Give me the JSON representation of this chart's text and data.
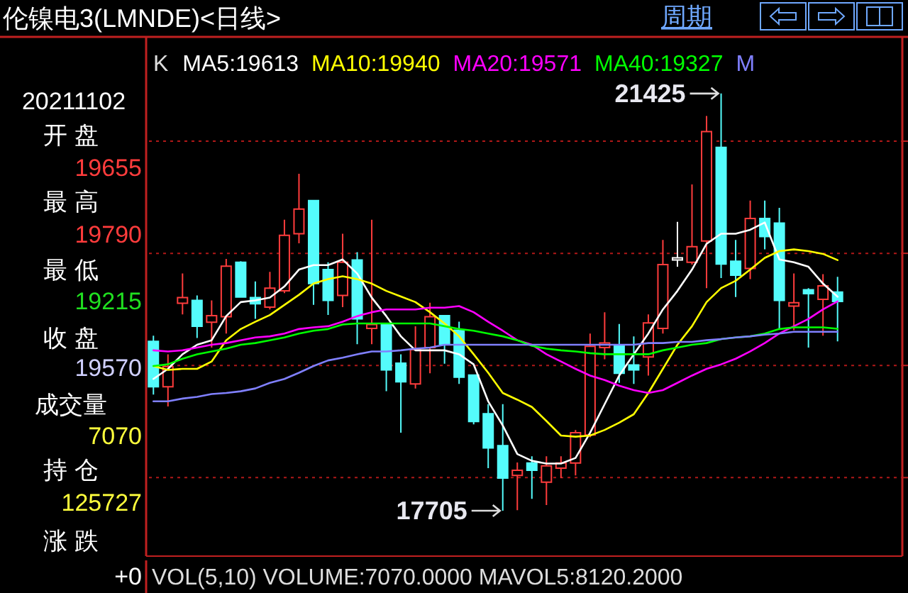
{
  "chart_data": {
    "type": "candlestick",
    "title": "伦镍电3(LMNDE)<日线>",
    "categories": [
      null,
      null,
      null,
      null,
      null,
      null,
      null,
      null,
      null,
      null,
      null,
      null,
      null,
      null,
      null,
      null,
      null,
      null,
      null,
      null,
      null,
      null,
      null,
      null,
      null,
      null,
      null,
      null,
      null,
      null,
      null,
      null,
      null,
      null,
      null,
      null,
      null,
      null,
      null,
      null,
      null,
      null,
      null,
      null,
      null,
      null,
      null,
      null
    ],
    "ohlc": [
      [
        19215,
        19265,
        18740,
        18810
      ],
      [
        18810,
        19100,
        18635,
        18990
      ],
      [
        19555,
        19820,
        19455,
        19605
      ],
      [
        19580,
        19625,
        19245,
        19350
      ],
      [
        19385,
        19580,
        19160,
        19445
      ],
      [
        19435,
        19950,
        19285,
        19885
      ],
      [
        19920,
        19930,
        19605,
        19610
      ],
      [
        19605,
        19750,
        19415,
        19550
      ],
      [
        19520,
        19835,
        19500,
        19690
      ],
      [
        19665,
        20300,
        19645,
        20160
      ],
      [
        20175,
        20710,
        20090,
        20395
      ],
      [
        20470,
        20470,
        19540,
        19730
      ],
      [
        19855,
        19920,
        19450,
        19580
      ],
      [
        19625,
        20175,
        19520,
        19920
      ],
      [
        19940,
        20010,
        19190,
        19415
      ],
      [
        19330,
        20300,
        19190,
        19365
      ],
      [
        19365,
        19365,
        18770,
        18960
      ],
      [
        19020,
        19100,
        18400,
        18855
      ],
      [
        18835,
        19350,
        18795,
        19140
      ],
      [
        19160,
        19560,
        18930,
        19435
      ],
      [
        19445,
        19445,
        19015,
        19190
      ],
      [
        19315,
        19390,
        18835,
        18895
      ],
      [
        18915,
        18915,
        18475,
        18500
      ],
      [
        18570,
        18655,
        18085,
        18265
      ],
      [
        18285,
        18655,
        17705,
        17995
      ],
      [
        18020,
        18135,
        17710,
        18065
      ],
      [
        18130,
        18190,
        17810,
        18065
      ],
      [
        17960,
        18190,
        17755,
        18105
      ],
      [
        18085,
        18190,
        17995,
        18130
      ],
      [
        18130,
        18425,
        18020,
        18400
      ],
      [
        18380,
        19285,
        18360,
        19170
      ],
      [
        19160,
        19475,
        19055,
        19200
      ],
      [
        19180,
        19370,
        18845,
        18930
      ],
      [
        19005,
        19260,
        18835,
        18960
      ],
      [
        19075,
        19455,
        18910,
        19380
      ],
      [
        19330,
        20120,
        19285,
        19900
      ],
      [
        19940,
        20280,
        19880,
        19960
      ],
      [
        19920,
        20615,
        19900,
        20060
      ],
      [
        20110,
        21225,
        19690,
        21085
      ],
      [
        20945,
        21425,
        19780,
        19905
      ],
      [
        19930,
        20120,
        19610,
        19805
      ],
      [
        19865,
        20470,
        19770,
        20310
      ],
      [
        20310,
        20470,
        20035,
        20150
      ],
      [
        20270,
        20405,
        19330,
        19580
      ],
      [
        19530,
        19820,
        19315,
        19560
      ],
      [
        19675,
        19690,
        19160,
        19640
      ],
      [
        19590,
        19815,
        19265,
        19710
      ],
      [
        19655,
        19790,
        19215,
        19570
      ]
    ],
    "colors": [
      "#54fcfc",
      "#ff3c3c",
      "#ff3c3c",
      "#54fcfc",
      "#ff3c3c",
      "#ff3c3c",
      "#54fcfc",
      "#54fcfc",
      "#ff3c3c",
      "#ff3c3c",
      "#ff3c3c",
      "#54fcfc",
      "#54fcfc",
      "#ff3c3c",
      "#54fcfc",
      "#ff3c3c",
      "#54fcfc",
      "#54fcfc",
      "#ff3c3c",
      "#ff3c3c",
      "#54fcfc",
      "#54fcfc",
      "#54fcfc",
      "#54fcfc",
      "#54fcfc",
      "#ff3c3c",
      "#54fcfc",
      "#ff3c3c",
      "#ff3c3c",
      "#ff3c3c",
      "#ff3c3c",
      "#ff3c3c",
      "#54fcfc",
      "#54fcfc",
      "#ff3c3c",
      "#ff3c3c",
      "#ffffff",
      "#ff3c3c",
      "#ff3c3c",
      "#54fcfc",
      "#54fcfc",
      "#ff3c3c",
      "#54fcfc",
      "#54fcfc",
      "#ff3c3c",
      "#54fcfc",
      "#ff3c3c",
      "#54fcfc"
    ],
    "series": [
      {
        "type": "line",
        "name": "MA5:19613",
        "color": "#ffffff",
        "values": [
          18880,
          18970,
          19100,
          19185,
          19225,
          19440,
          19565,
          19580,
          19605,
          19705,
          19855,
          19895,
          19895,
          19945,
          19820,
          19605,
          19440,
          19260,
          19135,
          19135,
          19135,
          19100,
          19010,
          18680,
          18465,
          18210,
          18150,
          18125,
          18125,
          18175,
          18400,
          18655,
          18910,
          19100,
          19285,
          19500,
          19665,
          19855,
          20085,
          20175,
          20175,
          20210,
          20275,
          19945,
          19920,
          19880,
          19730,
          19613
        ]
      },
      {
        "type": "line",
        "name": "MA10:19940",
        "color": "#ffff00",
        "values": [
          18995,
          18960,
          18970,
          18970,
          19035,
          19225,
          19325,
          19390,
          19450,
          19540,
          19630,
          19730,
          19770,
          19795,
          19770,
          19730,
          19665,
          19615,
          19565,
          19475,
          19375,
          19260,
          19100,
          18935,
          18755,
          18695,
          18630,
          18505,
          18375,
          18365,
          18375,
          18425,
          18490,
          18565,
          18755,
          18970,
          19185,
          19350,
          19565,
          19690,
          19755,
          19855,
          19960,
          20020,
          20035,
          20020,
          19995,
          19940
        ]
      },
      {
        "type": "line",
        "name": "MA20:19571",
        "color": "#ff00ff",
        "values": [
          19135,
          19125,
          19135,
          19160,
          19185,
          19200,
          19225,
          19250,
          19260,
          19285,
          19325,
          19340,
          19350,
          19390,
          19440,
          19475,
          19500,
          19500,
          19500,
          19515,
          19515,
          19530,
          19475,
          19390,
          19310,
          19225,
          19185,
          19100,
          19035,
          18970,
          18910,
          18870,
          18820,
          18780,
          18755,
          18780,
          18845,
          18910,
          18970,
          19010,
          19060,
          19125,
          19200,
          19285,
          19350,
          19415,
          19500,
          19571
        ]
      },
      {
        "type": "line",
        "name": "MA40:19327",
        "color": "#00ff00",
        "values": [
          18995,
          19010,
          19060,
          19100,
          19125,
          19150,
          19185,
          19200,
          19225,
          19250,
          19285,
          19310,
          19325,
          19365,
          19375,
          19375,
          19375,
          19375,
          19375,
          19375,
          19350,
          19325,
          19310,
          19285,
          19260,
          19225,
          19175,
          19150,
          19135,
          19125,
          19110,
          19100,
          19100,
          19100,
          19100,
          19135,
          19160,
          19185,
          19200,
          19235,
          19250,
          19260,
          19285,
          19325,
          19340,
          19340,
          19340,
          19327
        ]
      },
      {
        "type": "line",
        "name": "M",
        "color": "#8080ff",
        "values": [
          18680,
          18680,
          18705,
          18720,
          18745,
          18755,
          18770,
          18795,
          18845,
          18880,
          18935,
          18995,
          19045,
          19070,
          19100,
          19125,
          19125,
          19135,
          19150,
          19160,
          19185,
          19185,
          19185,
          19185,
          19185,
          19185,
          19185,
          19185,
          19185,
          19185,
          19185,
          19185,
          19185,
          19185,
          19200,
          19200,
          19210,
          19210,
          19225,
          19235,
          19250,
          19260,
          19275,
          19285,
          19300,
          19300,
          19300,
          19300
        ]
      }
    ],
    "ylim": [
      17300,
      21930
    ],
    "yticks": [
      {
        "value": 18000,
        "label": null
      },
      {
        "value": 19000,
        "label": null
      },
      {
        "value": 20000,
        "label": null
      },
      {
        "value": 21000,
        "label": null
      }
    ],
    "grid": "y",
    "legend": "top",
    "annotations": [
      "K",
      "20211102",
      "开 盘",
      "19655",
      "最 高",
      "19790",
      "最 低",
      "19215",
      "收 盘",
      "19570",
      "成交量",
      "7070",
      "持 仓",
      "125727",
      "涨 跌",
      "+0",
      "周期",
      "VOL(5,10) VOLUME:7070.0000 MAVOL5:8120.2000",
      "21425",
      "17705"
    ]
  }
}
